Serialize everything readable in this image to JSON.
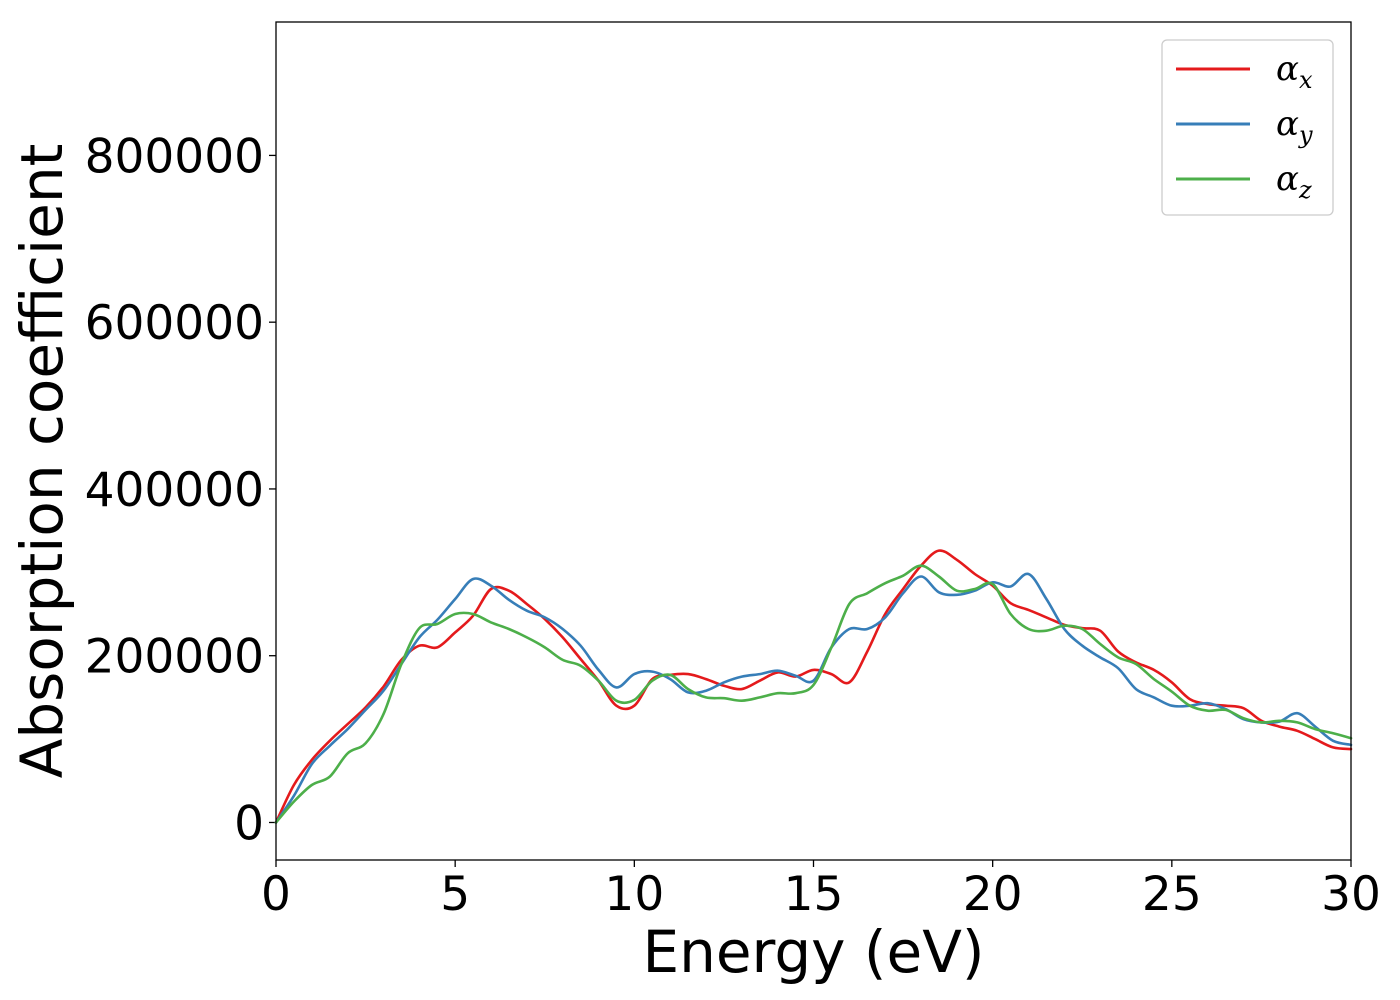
{
  "chart_data": {
    "type": "line",
    "title": "",
    "xlabel": "Energy (eV)",
    "ylabel": "Absorption coefficient",
    "xlim": [
      0,
      30
    ],
    "ylim": [
      -45000,
      960000
    ],
    "xticks": [
      0,
      5,
      10,
      15,
      20,
      25,
      30
    ],
    "xtick_labels": [
      "0",
      "5",
      "10",
      "15",
      "20",
      "25",
      "30"
    ],
    "yticks": [
      0,
      200000,
      400000,
      600000,
      800000
    ],
    "ytick_labels": [
      "0",
      "200000",
      "400000",
      "600000",
      "800000"
    ],
    "grid": false,
    "legend_position": "top-right",
    "x": [
      0,
      0.5,
      1,
      1.5,
      2,
      2.5,
      3,
      3.5,
      4,
      4.5,
      5,
      5.5,
      6,
      6.5,
      7,
      7.5,
      8,
      8.5,
      9,
      9.5,
      10,
      10.5,
      11,
      11.5,
      12,
      12.5,
      13,
      13.5,
      14,
      14.5,
      15,
      15.5,
      16,
      16.5,
      17,
      17.5,
      18,
      18.5,
      19,
      19.5,
      20,
      20.5,
      21,
      21.5,
      22,
      22.5,
      23,
      23.5,
      24,
      24.5,
      25,
      25.5,
      26,
      26.5,
      27,
      27.5,
      28,
      28.5,
      29,
      29.5,
      30
    ],
    "series": [
      {
        "name": "α",
        "subscript": "x",
        "color": "#e41a1c",
        "values": [
          0,
          45000,
          75000,
          98000,
          118000,
          138000,
          163000,
          195000,
          212000,
          210000,
          228000,
          248000,
          280000,
          278000,
          262000,
          244000,
          222000,
          196000,
          170000,
          140000,
          140000,
          172000,
          177000,
          178000,
          172000,
          164000,
          160000,
          170000,
          180000,
          175000,
          183000,
          178000,
          168000,
          205000,
          250000,
          280000,
          308000,
          326000,
          315000,
          298000,
          284000,
          263000,
          255000,
          246000,
          237000,
          233000,
          230000,
          205000,
          192000,
          183000,
          168000,
          148000,
          142000,
          140000,
          137000,
          122000,
          115000,
          110000,
          100000,
          90000,
          88000
        ]
      },
      {
        "name": "α",
        "subscript": "y",
        "color": "#377eb8",
        "values": [
          0,
          32000,
          70000,
          92000,
          112000,
          135000,
          158000,
          190000,
          222000,
          243000,
          268000,
          292000,
          284000,
          267000,
          254000,
          246000,
          232000,
          212000,
          183000,
          162000,
          178000,
          181000,
          172000,
          156000,
          158000,
          168000,
          175000,
          178000,
          182000,
          176000,
          170000,
          210000,
          232000,
          232000,
          246000,
          275000,
          295000,
          276000,
          273000,
          278000,
          288000,
          283000,
          298000,
          268000,
          232000,
          212000,
          198000,
          185000,
          160000,
          150000,
          140000,
          140000,
          143000,
          136000,
          124000,
          120000,
          121000,
          131000,
          115000,
          98000,
          93000
        ]
      },
      {
        "name": "α",
        "subscript": "z",
        "color": "#4daf4a",
        "values": [
          0,
          25000,
          45000,
          55000,
          83000,
          95000,
          130000,
          190000,
          233000,
          238000,
          250000,
          250000,
          240000,
          232000,
          222000,
          210000,
          195000,
          188000,
          170000,
          146000,
          147000,
          170000,
          177000,
          160000,
          150000,
          149000,
          146000,
          150000,
          155000,
          155000,
          165000,
          210000,
          262000,
          275000,
          287000,
          296000,
          308000,
          295000,
          278000,
          280000,
          286000,
          250000,
          232000,
          230000,
          236000,
          232000,
          214000,
          198000,
          190000,
          172000,
          157000,
          140000,
          134000,
          135000,
          125000,
          120000,
          122000,
          120000,
          112000,
          107000,
          101000
        ]
      }
    ]
  }
}
